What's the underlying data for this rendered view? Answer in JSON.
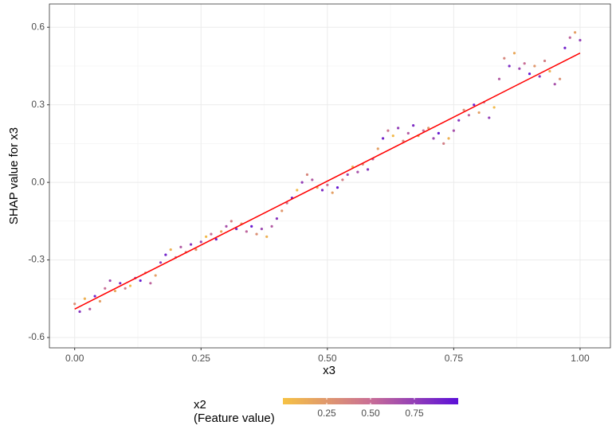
{
  "chart_data": {
    "type": "scatter",
    "x_label": "x3",
    "y_label": "SHAP value for x3",
    "xlim": [
      -0.05,
      1.06
    ],
    "ylim": [
      -0.64,
      0.69
    ],
    "xticks": [
      {
        "value": 0,
        "label": "0.00"
      },
      0.25,
      {
        "value": 0.5,
        "label": "0.50"
      },
      0.75,
      {
        "value": 1,
        "label": "1.00"
      }
    ],
    "yticks": [
      -0.6,
      -0.3,
      {
        "value": 0,
        "label": "0.0"
      },
      0.3,
      0.6
    ],
    "grid": true,
    "points": {
      "x": [
        0,
        0.01,
        0.02,
        0.03,
        0.04,
        0.05,
        0.06,
        0.07,
        0.08,
        0.09,
        0.1,
        0.11,
        0.12,
        0.13,
        0.14,
        0.15,
        0.16,
        0.17,
        0.18,
        0.19,
        0.2,
        0.21,
        0.22,
        0.23,
        0.24,
        0.25,
        0.26,
        0.27,
        0.28,
        0.29,
        0.3,
        0.31,
        0.32,
        0.33,
        0.34,
        0.35,
        0.36,
        0.37,
        0.38,
        0.39,
        0.4,
        0.41,
        0.42,
        0.43,
        0.44,
        0.45,
        0.46,
        0.47,
        0.48,
        0.49,
        0.5,
        0.51,
        0.52,
        0.53,
        0.54,
        0.55,
        0.56,
        0.57,
        0.58,
        0.59,
        0.6,
        0.61,
        0.62,
        0.63,
        0.64,
        0.65,
        0.66,
        0.67,
        0.68,
        0.69,
        0.7,
        0.71,
        0.72,
        0.73,
        0.74,
        0.75,
        0.76,
        0.77,
        0.78,
        0.79,
        0.8,
        0.81,
        0.82,
        0.83,
        0.84,
        0.85,
        0.86,
        0.87,
        0.88,
        0.89,
        0.9,
        0.91,
        0.92,
        0.93,
        0.94,
        0.95,
        0.96,
        0.97,
        0.98,
        0.99,
        1
      ],
      "y": [
        -0.47,
        -0.5,
        -0.45,
        -0.49,
        -0.44,
        -0.46,
        -0.41,
        -0.38,
        -0.42,
        -0.39,
        -0.41,
        -0.4,
        -0.37,
        -0.38,
        -0.35,
        -0.39,
        -0.36,
        -0.31,
        -0.28,
        -0.26,
        -0.29,
        -0.25,
        -0.27,
        -0.24,
        -0.26,
        -0.23,
        -0.21,
        -0.2,
        -0.22,
        -0.19,
        -0.17,
        -0.15,
        -0.18,
        -0.16,
        -0.19,
        -0.17,
        -0.2,
        -0.18,
        -0.21,
        -0.17,
        -0.14,
        -0.11,
        -0.08,
        -0.06,
        -0.03,
        0,
        0.03,
        0.01,
        -0.02,
        -0.03,
        -0.01,
        -0.04,
        -0.02,
        0.01,
        0.03,
        0.06,
        0.04,
        0.07,
        0.05,
        0.09,
        0.13,
        0.17,
        0.2,
        0.18,
        0.21,
        0.16,
        0.19,
        0.22,
        0.18,
        0.2,
        0.21,
        0.17,
        0.19,
        0.15,
        0.17,
        0.2,
        0.24,
        0.28,
        0.26,
        0.3,
        0.27,
        0.31,
        0.25,
        0.29,
        0.4,
        0.48,
        0.45,
        0.5,
        0.44,
        0.46,
        0.42,
        0.45,
        0.41,
        0.47,
        0.43,
        0.38,
        0.4,
        0.52,
        0.56,
        0.58,
        0.55
      ],
      "color_values": [
        0.3,
        0.8,
        0.1,
        0.6,
        0.9,
        0.2,
        0.5,
        0.7,
        0.15,
        0.85,
        0.4,
        0.05,
        0.65,
        0.95,
        0.3,
        0.55,
        0.2,
        0.75,
        0.9,
        0.1,
        0.45,
        0.6,
        0.35,
        0.8,
        0.25,
        0.7,
        0.05,
        0.5,
        0.9,
        0.15,
        0.65,
        0.4,
        0.85,
        0.2,
        0.55,
        0.95,
        0.3,
        0.7,
        0.1,
        0.6,
        0.8,
        0.25,
        0.45,
        0.9,
        0.05,
        0.75,
        0.35,
        0.6,
        0.15,
        0.85,
        0.5,
        0.2,
        0.95,
        0.4,
        0.7,
        0.1,
        0.65,
        0.3,
        0.8,
        0.55,
        0.2,
        0.9,
        0.45,
        0.05,
        0.75,
        0.35,
        0.6,
        0.85,
        0.15,
        0.5,
        0.25,
        0.7,
        0.95,
        0.4,
        0.1,
        0.65,
        0.8,
        0.3,
        0.55,
        0.9,
        0.2,
        0.45,
        0.75,
        0.05,
        0.6,
        0.35,
        0.85,
        0.15,
        0.7,
        0.5,
        0.95,
        0.25,
        0.8,
        0.4,
        0.1,
        0.65,
        0.3,
        0.9,
        0.55,
        0.2,
        0.75
      ]
    },
    "trend_line": {
      "x": [
        0,
        1
      ],
      "y": [
        -0.49,
        0.5
      ],
      "color": "#ff0000"
    },
    "colorbar": {
      "title": "x2",
      "subtitle": "(Feature value)",
      "lim": [
        0,
        1
      ],
      "colors": [
        "#f6c244",
        "#c96e96",
        "#5c10d8"
      ],
      "ticks": [
        0.25,
        {
          "value": 0.5,
          "label": "0.50"
        },
        0.75
      ]
    }
  }
}
